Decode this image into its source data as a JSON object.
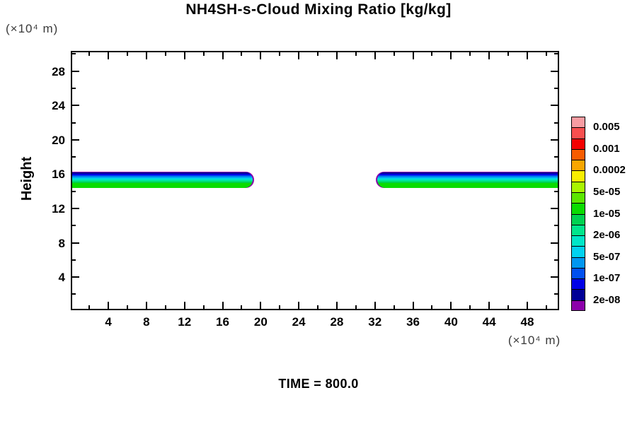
{
  "title": "NH4SH-s-Cloud Mixing Ratio [kg/kg]",
  "axes": {
    "x": {
      "unit": "(×10⁴  m)",
      "range": [
        0.2,
        51.2
      ],
      "major_ticks": [
        4,
        8,
        12,
        16,
        20,
        24,
        28,
        32,
        36,
        40,
        44,
        48
      ],
      "minor_ticks": [
        2,
        6,
        10,
        14,
        18,
        22,
        26,
        30,
        34,
        38,
        42,
        46,
        50
      ]
    },
    "y": {
      "label": "Height",
      "unit": "(×10⁴  m)",
      "range": [
        0.3,
        30.2
      ],
      "major_ticks": [
        4,
        8,
        12,
        16,
        20,
        24,
        28
      ],
      "minor_ticks": [
        2,
        6,
        10,
        14,
        18,
        22,
        26,
        30
      ]
    }
  },
  "footer": {
    "time_label": "TIME = 800.0"
  },
  "colorbar": {
    "colors": [
      "#F89CA2",
      "#F84F4F",
      "#F50000",
      "#F85C00",
      "#F8A600",
      "#F8EE00",
      "#A9F500",
      "#5BE600",
      "#0ADC00",
      "#00D250",
      "#00E68C",
      "#00E6C8",
      "#00D2F0",
      "#0096F0",
      "#0050F0",
      "#0000E6",
      "#000096",
      "#8C00AA"
    ],
    "labels": [
      "0.005",
      "0.001",
      "0.0002",
      "5e-05",
      "1e-05",
      "2e-06",
      "5e-07",
      "1e-07",
      "2e-08"
    ],
    "labeled_boundaries": [
      1,
      3,
      5,
      7,
      9,
      11,
      13,
      15,
      17
    ]
  },
  "chart_data": {
    "type": "heatmap",
    "title": "NH4SH-s-Cloud Mixing Ratio [kg/kg]",
    "xlabel": "(×10⁴  m)",
    "ylabel": "Height (×10⁴  m)",
    "time": 800.0,
    "x_range": [
      0.2,
      51.2
    ],
    "y_range": [
      0.3,
      30.2
    ],
    "legend_position": "right",
    "contour_levels_kg_per_kg": [
      2e-08,
      5e-08,
      1e-07,
      2e-07,
      5e-07,
      1e-06,
      2e-06,
      5e-06,
      1e-05,
      2e-05,
      5e-05,
      0.0001,
      0.0002,
      0.0005,
      0.001,
      0.002,
      0.005
    ],
    "bands": [
      {
        "name": "left-cloud-layer",
        "x_start": 0.2,
        "x_end": 19.3,
        "y_base": 14.35,
        "y_top": 16.3,
        "rounded_end": "right"
      },
      {
        "name": "right-cloud-layer",
        "x_start": 32.1,
        "x_end": 51.2,
        "y_base": 14.35,
        "y_top": 16.3,
        "rounded_end": "left"
      }
    ],
    "band_vertical_profile_top_to_bottom": [
      {
        "mixing_ratio": "2e-08",
        "color": "#8C00AA",
        "frac": 0.05
      },
      {
        "mixing_ratio": "5e-08",
        "color": "#000096",
        "frac": 0.08
      },
      {
        "mixing_ratio": "1e-07",
        "color": "#0000E6",
        "frac": 0.08
      },
      {
        "mixing_ratio": "2e-07",
        "color": "#0050F0",
        "frac": 0.08
      },
      {
        "mixing_ratio": "5e-07",
        "color": "#0096F0",
        "frac": 0.07
      },
      {
        "mixing_ratio": "1e-06",
        "color": "#00D2F0",
        "frac": 0.08
      },
      {
        "mixing_ratio": "2e-06",
        "color": "#00E6C8",
        "frac": 0.08
      },
      {
        "mixing_ratio": "5e-06",
        "color": "#00E68C",
        "frac": 0.08
      },
      {
        "mixing_ratio": "1e-05",
        "color": "#00D250",
        "frac": 0.09
      },
      {
        "mixing_ratio": "2e-05",
        "color": "#0ADC00",
        "frac": 0.31
      }
    ]
  }
}
